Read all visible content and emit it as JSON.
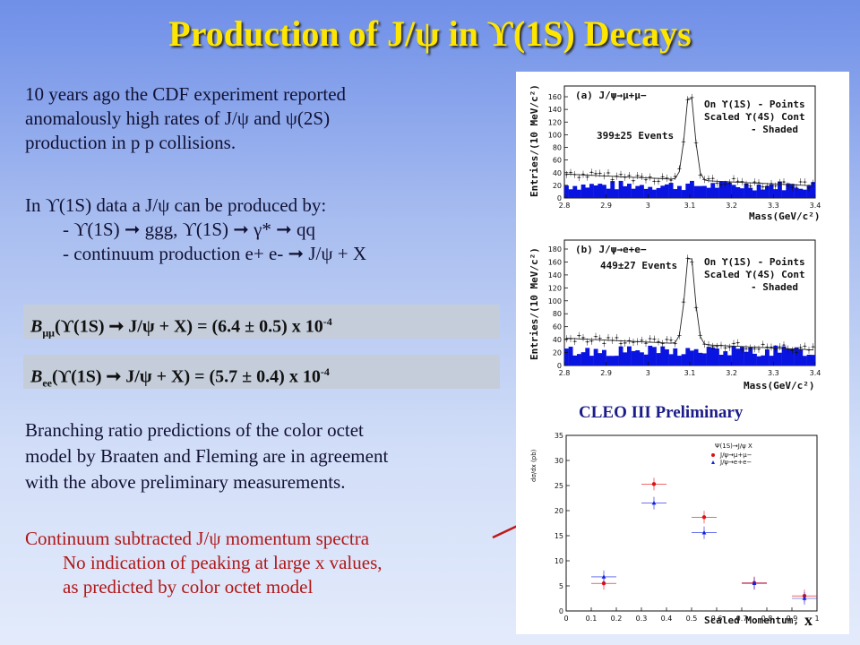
{
  "slide": {
    "title": "Production of J/ψ in ϒ(1S) Decays",
    "intro_lines": [
      "10 years ago the CDF experiment reported",
      "anomalously high rates of J/ψ and ψ(2S)",
      "production in p p collisions."
    ],
    "production_header": "In ϒ(1S) data a J/ψ can be produced by:",
    "production_items": [
      "- ϒ(1S) ➞ ggg,  ϒ(1S) ➞ γ* ➞ qq",
      "- continuum production  e+ e- ➞ J/ψ + X"
    ],
    "br_mumu": {
      "symbol": "B",
      "sub": "μμ",
      "text": "(ϒ(1S) ➞ J/ψ + X)  =  (6.4  ±  0.5) x 10",
      "exp": "-4"
    },
    "br_ee": {
      "symbol": "B",
      "sub": "ee",
      "text": "(ϒ(1S) ➞ J/ψ + X)  =  (5.7  ±  0.4) x 10",
      "exp": "-4"
    },
    "prediction_lines": [
      "Branching ratio predictions of the color octet",
      "model by Braaten and Fleming are in agreement",
      "with the above preliminary measurements."
    ],
    "continuum_title": "Continuum subtracted J/ψ momentum spectra",
    "continuum_lines": [
      "No indication of peaking at large x values,",
      "as predicted by color octet model"
    ],
    "cleo_label": "CLEO III Preliminary",
    "x_label": "x",
    "colors": {
      "title": "#ffe600",
      "box": "#c4cdd9",
      "red_text": "#b01818",
      "cleo": "#1c1c88",
      "hist_fill": "#0a14e0"
    }
  },
  "plots": {
    "mumu": {
      "panel_label": "(a) J/ψ→μ+μ−",
      "legend": [
        "On ϒ(1S) - Points",
        "Scaled ϒ(4S) Cont",
        "- Shaded"
      ],
      "events": "399±25 Events",
      "ylabel": "Entries/(10 MeV/c²)",
      "xlabel": "Mass(GeV/c²)",
      "yticks": [
        "0",
        "20",
        "40",
        "60",
        "80",
        "100",
        "120",
        "140",
        "160"
      ],
      "xticks": [
        "2.8",
        "2.9",
        "3",
        "3.1",
        "3.2",
        "3.3",
        "3.4"
      ]
    },
    "ee": {
      "panel_label": "(b) J/ψ→e+e−",
      "legend": [
        "On ϒ(1S) - Points",
        "Scaled ϒ(4S) Cont",
        "- Shaded"
      ],
      "events": "449±27 Events",
      "ylabel": "Entries/(10 MeV/c²)",
      "xlabel": "Mass(GeV/c²)",
      "yticks": [
        "0",
        "20",
        "40",
        "60",
        "80",
        "100",
        "120",
        "140",
        "160",
        "180"
      ],
      "xticks": [
        "2.8",
        "2.9",
        "3",
        "3.1",
        "3.2",
        "3.3",
        "3.4"
      ]
    },
    "momentum": {
      "title": "Ψ(1S)→J/ψ X",
      "legend": [
        "J/ψ→μ+μ−",
        "J/ψ→e+e−"
      ],
      "ylabel": "dσ/dx (pb)",
      "xlabel": "Scaled Momentum,",
      "yticks": [
        "0",
        "5",
        "10",
        "15",
        "20",
        "25",
        "30",
        "35"
      ],
      "xticks": [
        "0",
        "0.1",
        "0.2",
        "0.3",
        "0.4",
        "0.5",
        "0.6",
        "0.7",
        "0.8",
        "0.9",
        "1"
      ]
    }
  },
  "chart_data": [
    {
      "type": "scatter",
      "ylim": [
        0,
        35
      ],
      "xlim": [
        0,
        1
      ],
      "series": [
        {
          "name": "J/ψ→μ+μ−",
          "color": "#e01010",
          "x": [
            0.15,
            0.35,
            0.55,
            0.75,
            0.95
          ],
          "y": [
            5.5,
            25.3,
            18.7,
            5.6,
            3.0
          ]
        },
        {
          "name": "J/ψ→e+e−",
          "color": "#1020e0",
          "x": [
            0.15,
            0.35,
            0.55,
            0.75,
            0.95
          ],
          "y": [
            6.8,
            21.5,
            15.6,
            5.5,
            2.5
          ]
        }
      ]
    }
  ]
}
